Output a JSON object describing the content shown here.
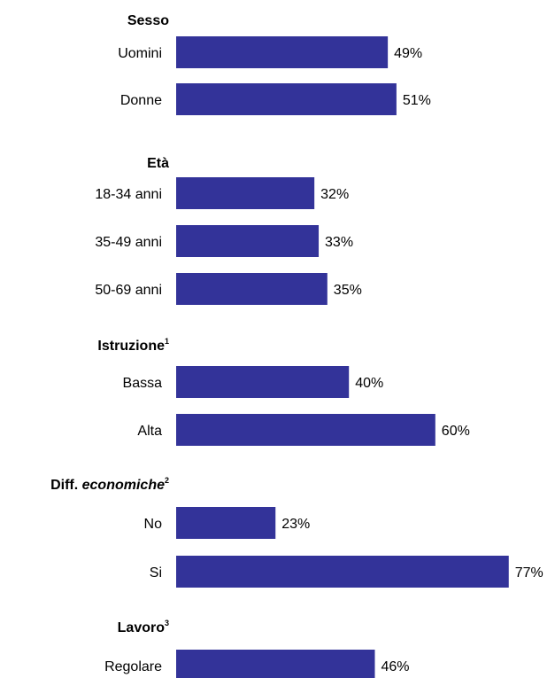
{
  "chart_data": {
    "type": "bar",
    "orientation": "horizontal",
    "bar_color": "#333399",
    "xlim": [
      0,
      100
    ],
    "groups": [
      {
        "label": "Sesso",
        "label_italic": "",
        "sup": "",
        "items": [
          {
            "label": "Uomini",
            "value": 49,
            "display": "49%"
          },
          {
            "label": "Donne",
            "value": 51,
            "display": "51%"
          }
        ]
      },
      {
        "label": "Età",
        "label_italic": "",
        "sup": "",
        "items": [
          {
            "label": "18-34 anni",
            "value": 32,
            "display": "32%"
          },
          {
            "label": "35-49 anni",
            "value": 33,
            "display": "33%"
          },
          {
            "label": "50-69 anni",
            "value": 35,
            "display": "35%"
          }
        ]
      },
      {
        "label": "Istruzione",
        "label_italic": "",
        "sup": "1",
        "items": [
          {
            "label": "Bassa",
            "value": 40,
            "display": "40%"
          },
          {
            "label": "Alta",
            "value": 60,
            "display": "60%"
          }
        ]
      },
      {
        "label": "Diff. ",
        "label_italic": "economiche",
        "sup": "2",
        "items": [
          {
            "label": "No",
            "value": 23,
            "display": "23%"
          },
          {
            "label": "Si",
            "value": 77,
            "display": "77%"
          }
        ]
      },
      {
        "label": "Lavoro",
        "label_italic": "",
        "sup": "3",
        "items": [
          {
            "label": "Regolare",
            "value": 46,
            "display": "46%"
          }
        ]
      }
    ]
  }
}
